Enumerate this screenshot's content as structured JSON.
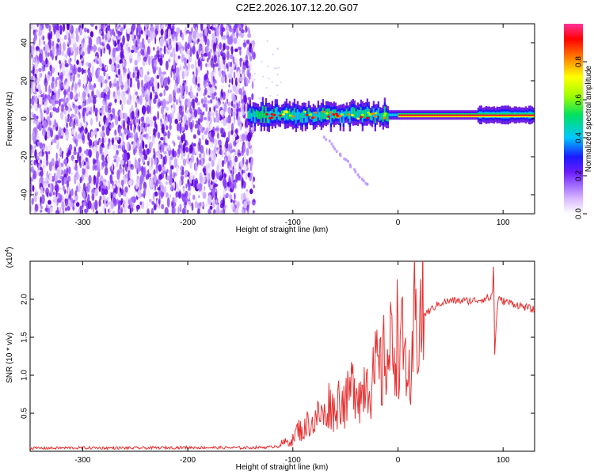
{
  "title": "C2E2.2026.107.12.20.G07",
  "chart_data": [
    {
      "type": "heatmap",
      "title": "C2E2.2026.107.12.20.G07",
      "xlabel": "Height of straight line (km)",
      "ylabel": "Frequency (Hz)",
      "xlim": [
        -350,
        130
      ],
      "ylim": [
        -50,
        50
      ],
      "xticks": [
        -300,
        -200,
        -100,
        0,
        100
      ],
      "yticks": [
        -40,
        -20,
        0,
        20,
        40
      ],
      "colorbar": {
        "label": "Normalized spectral amplitude",
        "range": [
          0,
          1
        ],
        "ticks": [
          0.0,
          0.2,
          0.4,
          0.6,
          0.8
        ],
        "tick_labels": [
          "0.0",
          "0.2",
          "0.4",
          "0.6",
          "0.8"
        ]
      },
      "description_regions": {
        "noise_region_x": [
          -350,
          -137
        ],
        "signal_center_freq_hz": 2,
        "faint_branch": {
          "x": [
            -70,
            -28
          ],
          "freq_hz": [
            -10,
            -35
          ]
        }
      }
    },
    {
      "type": "line",
      "xlabel": "Height of straight line (km)",
      "ylabel": "SNR (10 * v/v)",
      "exponent_label": "(x10",
      "exponent_power": "4",
      "exponent_close": ")",
      "xlim": [
        -350,
        130
      ],
      "ylim": [
        0,
        25000
      ],
      "xticks": [
        -300,
        -200,
        -100,
        0,
        100
      ],
      "yticks": [
        5000,
        10000,
        15000,
        20000
      ],
      "ytick_labels": [
        "0.5",
        "1.0",
        "1.5",
        "2.0"
      ],
      "series": [
        {
          "name": "SNR",
          "color": "#e83030",
          "x": [
            -350,
            -300,
            -250,
            -200,
            -150,
            -120,
            -110,
            -100,
            -95,
            -90,
            -85,
            -80,
            -75,
            -70,
            -65,
            -60,
            -55,
            -50,
            -45,
            -40,
            -35,
            -30,
            -25,
            -20,
            -15,
            -12,
            -10,
            -5,
            0,
            5,
            10,
            12,
            15,
            20,
            25,
            30,
            35,
            40,
            50,
            60,
            70,
            80,
            85,
            88,
            90,
            91,
            92,
            95,
            100,
            110,
            120,
            130
          ],
          "y": [
            400,
            450,
            420,
            500,
            450,
            550,
            1000,
            1500,
            3000,
            2500,
            4000,
            3500,
            5000,
            4500,
            6500,
            5000,
            7500,
            6000,
            8000,
            9500,
            7000,
            10500,
            8500,
            11000,
            10000,
            13500,
            12000,
            14000,
            15500,
            13000,
            11000,
            4000,
            17000,
            17500,
            18000,
            18500,
            19000,
            19500,
            19800,
            19800,
            19800,
            20000,
            20200,
            20100,
            21000,
            24500,
            13000,
            20000,
            19800,
            19400,
            19000,
            18600
          ]
        }
      ]
    }
  ]
}
